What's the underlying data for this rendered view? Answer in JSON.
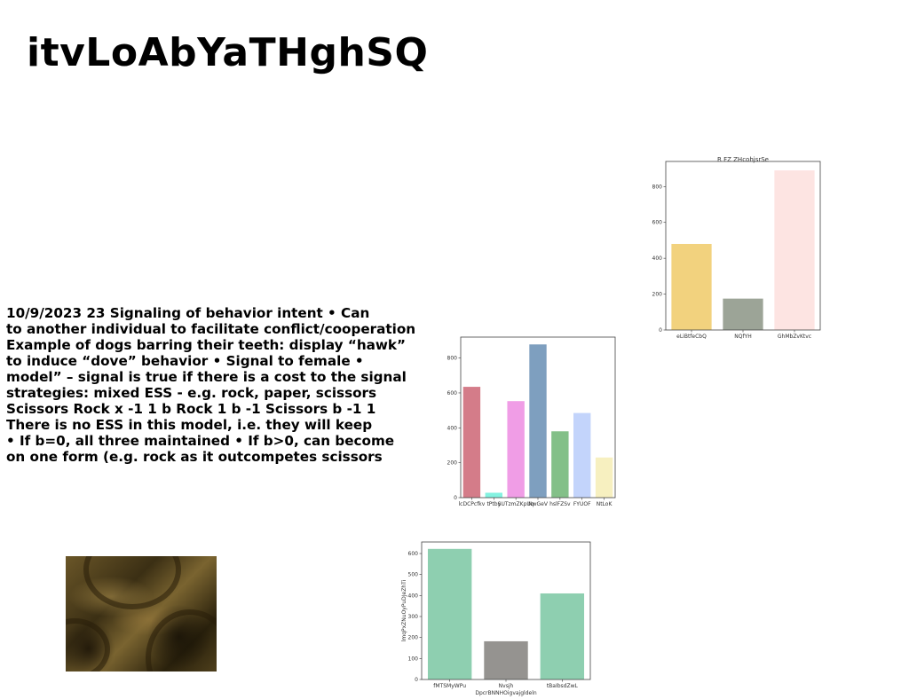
{
  "page": {
    "title": "itvLoAbYaTHghSQ"
  },
  "text_block": {
    "lines": [
      "10/9/2023 23 Signaling of behavior intent • Can",
      "to another individual to facilitate conflict/cooperation",
      "Example of dogs barring their teeth: display “hawk”",
      "to induce “dove” behavior • Signal to female •",
      "model” – signal is true if there is a cost to the signal",
      "strategies: mixed ESS - e.g. rock, paper, scissors",
      "Scissors Rock x -1 1 b Rock 1 b -1 Scissors b -1 1",
      "There is no ESS in this model, i.e. they will keep",
      "• If b=0, all three maintained • If b>0, can become",
      "on one form (e.g. rock as it outcompetes scissors"
    ]
  },
  "photo": {
    "icon": "fabric-photo"
  },
  "chart_data": [
    {
      "id": "chart-top-right",
      "type": "bar",
      "title": "R FZ ZHcohjsrSe",
      "xlabel": "",
      "ylabel": "",
      "categories": [
        "eLiBtfeCbQ",
        "NQfYH",
        "GhMbZvKtvc"
      ],
      "values": [
        480,
        175,
        890
      ],
      "colors": [
        "#f2d27e",
        "#9ca497",
        "#fde4e2"
      ],
      "ylim": [
        0,
        940
      ],
      "yticks": [
        0,
        200,
        400,
        600,
        800
      ],
      "grid": false
    },
    {
      "id": "chart-middle",
      "type": "bar",
      "title": "",
      "xlabel": "",
      "ylabel": "",
      "categories": [
        "lcDCPcfkv",
        "tPtby",
        "SUTzmZKpUq",
        "NwGeV",
        "hslFZSv",
        "FYUOF",
        "NtLoK"
      ],
      "values": [
        635,
        28,
        553,
        878,
        380,
        485,
        230
      ],
      "colors": [
        "#d47c89",
        "#84f2e0",
        "#f09de6",
        "#7e9fbf",
        "#83c088",
        "#c3d4fb",
        "#f7f0c0"
      ],
      "ylim": [
        0,
        920
      ],
      "yticks": [
        0,
        200,
        400,
        600,
        800
      ],
      "grid": false
    },
    {
      "id": "chart-bottom",
      "type": "bar",
      "title": "",
      "xlabel": "DpcrBNNHOigvajgldeln",
      "ylabel": "lmqPxZNuOyPuDJeZhTi",
      "categories": [
        "fMTSMyWPu",
        "Nvsjh",
        "tBaIbsdZwL"
      ],
      "values": [
        622,
        182,
        410
      ],
      "colors": [
        "#8ecfb0",
        "#959390",
        "#8ecfb0"
      ],
      "ylim": [
        0,
        655
      ],
      "yticks": [
        0,
        100,
        200,
        300,
        400,
        500,
        600
      ],
      "grid": false
    }
  ]
}
